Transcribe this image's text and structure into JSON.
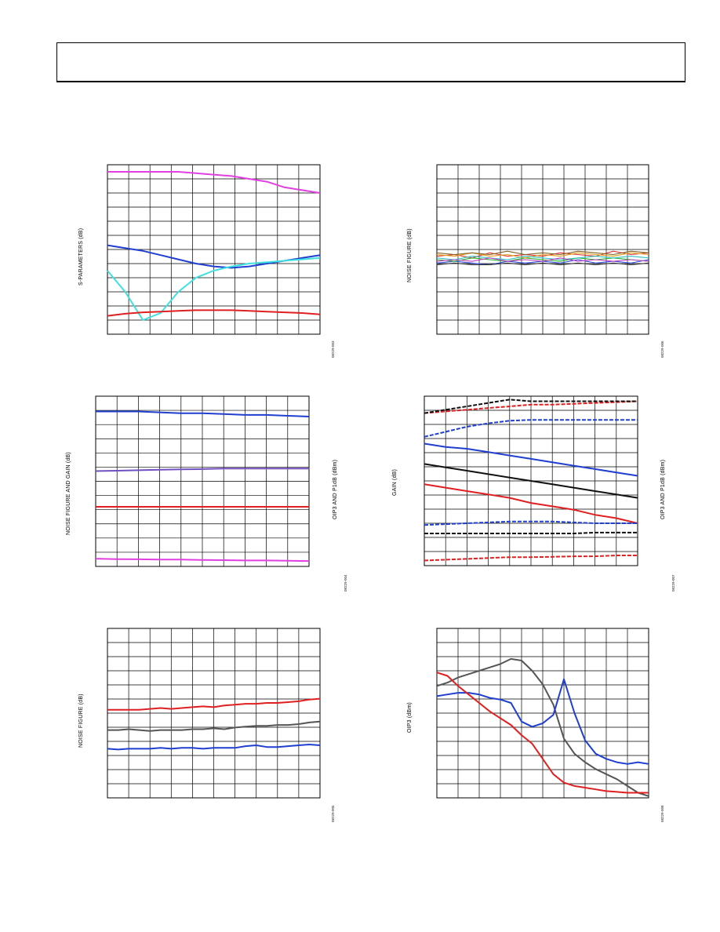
{
  "header": {
    "title": ""
  },
  "chart_data": [
    {
      "type": "line",
      "ylabel": "S-PARAMETERS (dB)",
      "figure_code": "08229-003",
      "grid": true,
      "x": [
        0,
        1,
        2,
        3,
        4,
        5,
        6,
        7,
        8,
        9,
        10,
        11,
        12
      ],
      "series": [
        {
          "color": "#e040e0",
          "values": [
            11.5,
            11.5,
            11.5,
            11.5,
            11.5,
            11.4,
            11.3,
            11.2,
            11.0,
            10.8,
            10.4,
            10.2,
            10.0
          ]
        },
        {
          "color": "#1f3fd0",
          "values": [
            6.3,
            6.1,
            5.9,
            5.6,
            5.3,
            5.0,
            4.8,
            4.7,
            4.8,
            5.0,
            5.2,
            5.4,
            5.6
          ]
        },
        {
          "color": "#40e0e0",
          "values": [
            4.5,
            3.0,
            1.0,
            1.5,
            3.0,
            4.0,
            4.5,
            4.8,
            5.0,
            5.1,
            5.2,
            5.3,
            5.4
          ]
        },
        {
          "color": "#e02020",
          "values": [
            1.3,
            1.45,
            1.55,
            1.6,
            1.65,
            1.7,
            1.7,
            1.7,
            1.65,
            1.6,
            1.55,
            1.5,
            1.4
          ]
        }
      ],
      "ylim": [
        0,
        12
      ]
    },
    {
      "type": "line",
      "ylabel": "NOISE FIGURE (dB)",
      "figure_code": "08229-006",
      "grid": true,
      "x": [
        0,
        1,
        2,
        3,
        4,
        5,
        6,
        7,
        8,
        9,
        10,
        11,
        12
      ],
      "series": [
        {
          "color": "#e03030",
          "values": [
            4.6,
            4.7,
            4.5,
            4.8,
            4.6,
            4.7,
            4.6,
            4.8,
            4.7,
            4.6,
            4.9,
            4.7,
            4.8
          ]
        },
        {
          "color": "#3050e0",
          "values": [
            4.2,
            4.3,
            4.2,
            4.1,
            4.3,
            4.2,
            4.3,
            4.2,
            4.4,
            4.2,
            4.3,
            4.2,
            4.4
          ]
        },
        {
          "color": "#30b030",
          "values": [
            4.4,
            4.3,
            4.5,
            4.4,
            4.3,
            4.5,
            4.4,
            4.3,
            4.5,
            4.4,
            4.5,
            4.4,
            4.3
          ]
        },
        {
          "color": "#e0a020",
          "values": [
            4.7,
            4.6,
            4.8,
            4.6,
            4.7,
            4.5,
            4.7,
            4.6,
            4.8,
            4.7,
            4.6,
            4.8,
            4.7
          ]
        },
        {
          "color": "#30c0c0",
          "values": [
            4.5,
            4.4,
            4.6,
            4.5,
            4.4,
            4.6,
            4.5,
            4.4,
            4.5,
            4.6,
            4.5,
            4.6,
            4.5
          ]
        },
        {
          "color": "#c040c0",
          "values": [
            4.3,
            4.4,
            4.3,
            4.5,
            4.3,
            4.4,
            4.3,
            4.5,
            4.3,
            4.4,
            4.3,
            4.4,
            4.3
          ]
        },
        {
          "color": "#303030",
          "values": [
            4.1,
            4.2,
            4.1,
            4.1,
            4.2,
            4.1,
            4.2,
            4.1,
            4.2,
            4.1,
            4.2,
            4.1,
            4.2
          ]
        },
        {
          "color": "#806020",
          "values": [
            4.8,
            4.7,
            4.8,
            4.7,
            4.9,
            4.7,
            4.8,
            4.7,
            4.9,
            4.8,
            4.7,
            4.9,
            4.8
          ]
        }
      ],
      "ylim": [
        0,
        10
      ]
    },
    {
      "type": "line",
      "ylabel": "NOISE FIGURE AND GAIN (dB)",
      "y2label": "OIP3 AND P1dB (dBm)",
      "figure_code": "08229-004",
      "grid": true,
      "x": [
        0,
        1,
        2,
        3,
        4,
        5,
        6,
        7,
        8,
        9,
        10
      ],
      "series": [
        {
          "color": "#1f3fd0",
          "values": [
            9.1,
            9.1,
            9.1,
            9.05,
            9.0,
            9.0,
            8.95,
            8.9,
            8.9,
            8.85,
            8.8
          ]
        },
        {
          "color": "#7050c0",
          "values": [
            5.6,
            5.62,
            5.65,
            5.68,
            5.7,
            5.72,
            5.75,
            5.75,
            5.75,
            5.75,
            5.75
          ]
        },
        {
          "color": "#e02020",
          "values": [
            3.5,
            3.5,
            3.5,
            3.5,
            3.5,
            3.5,
            3.5,
            3.5,
            3.5,
            3.5,
            3.5
          ]
        },
        {
          "color": "#e040e0",
          "values": [
            0.45,
            0.43,
            0.42,
            0.4,
            0.4,
            0.38,
            0.37,
            0.35,
            0.35,
            0.33,
            0.32
          ]
        }
      ],
      "ylim": [
        0,
        10
      ]
    },
    {
      "type": "line",
      "ylabel": "GAIN (dB)",
      "y2label": "OIP3 AND P1dB (dBm)",
      "figure_code": "08229-007",
      "grid": true,
      "x": [
        0,
        1,
        2,
        3,
        4,
        5,
        6,
        7,
        8,
        9,
        10
      ],
      "series": [
        {
          "color": "#e02020",
          "dash": true,
          "values": [
            9.0,
            9.1,
            9.2,
            9.3,
            9.4,
            9.5,
            9.5,
            9.55,
            9.6,
            9.65,
            9.7
          ]
        },
        {
          "color": "#111111",
          "dash": true,
          "values": [
            9.0,
            9.2,
            9.4,
            9.6,
            9.8,
            9.7,
            9.7,
            9.7,
            9.7,
            9.7,
            9.7
          ]
        },
        {
          "color": "#1f3fd0",
          "dash": true,
          "values": [
            7.6,
            7.9,
            8.2,
            8.4,
            8.55,
            8.6,
            8.6,
            8.6,
            8.6,
            8.6,
            8.6
          ]
        },
        {
          "color": "#1f3fd0",
          "values": [
            7.2,
            7.0,
            6.9,
            6.7,
            6.5,
            6.3,
            6.1,
            5.9,
            5.7,
            5.5,
            5.3
          ]
        },
        {
          "color": "#111111",
          "values": [
            6.0,
            5.8,
            5.6,
            5.4,
            5.2,
            5.0,
            4.8,
            4.6,
            4.4,
            4.2,
            4.0
          ]
        },
        {
          "color": "#e02020",
          "values": [
            4.8,
            4.6,
            4.4,
            4.2,
            4.0,
            3.7,
            3.5,
            3.3,
            3.0,
            2.8,
            2.5
          ]
        },
        {
          "color": "#1f3fd0",
          "dash": true,
          "values": [
            2.4,
            2.45,
            2.5,
            2.55,
            2.6,
            2.6,
            2.6,
            2.55,
            2.5,
            2.5,
            2.5
          ]
        },
        {
          "color": "#111111",
          "dash": true,
          "values": [
            1.9,
            1.9,
            1.9,
            1.9,
            1.9,
            1.9,
            1.9,
            1.9,
            1.95,
            1.95,
            1.95
          ]
        },
        {
          "color": "#e02020",
          "dash": true,
          "values": [
            0.3,
            0.35,
            0.4,
            0.45,
            0.5,
            0.5,
            0.52,
            0.55,
            0.55,
            0.6,
            0.6
          ]
        }
      ],
      "ylim": [
        0,
        10
      ]
    },
    {
      "type": "line",
      "ylabel": "NOISE FIGURE (dB)",
      "figure_code": "08229-005",
      "grid": true,
      "x": [
        0,
        1,
        2,
        3,
        4,
        5,
        6,
        7,
        8,
        9,
        10,
        11,
        12,
        13,
        14,
        15,
        16,
        17,
        18,
        19,
        20
      ],
      "series": [
        {
          "color": "#e02020",
          "values": [
            5.2,
            5.2,
            5.2,
            5.2,
            5.25,
            5.3,
            5.25,
            5.3,
            5.35,
            5.4,
            5.35,
            5.45,
            5.5,
            5.55,
            5.55,
            5.6,
            5.6,
            5.65,
            5.7,
            5.8,
            5.85
          ]
        },
        {
          "color": "#555555",
          "values": [
            4.0,
            4.0,
            4.05,
            4.0,
            3.95,
            4.0,
            4.0,
            4.0,
            4.05,
            4.05,
            4.1,
            4.05,
            4.15,
            4.2,
            4.25,
            4.25,
            4.3,
            4.3,
            4.35,
            4.45,
            4.5
          ]
        },
        {
          "color": "#1f3fd0",
          "values": [
            2.9,
            2.85,
            2.9,
            2.9,
            2.9,
            2.95,
            2.9,
            2.95,
            2.95,
            2.9,
            2.95,
            2.95,
            2.95,
            3.05,
            3.1,
            3.0,
            3.0,
            3.05,
            3.1,
            3.15,
            3.1
          ]
        }
      ],
      "ylim": [
        0,
        10
      ]
    },
    {
      "type": "line",
      "ylabel": "OIP3 (dBm)",
      "figure_code": "08229-008",
      "grid": true,
      "x": [
        0,
        1,
        2,
        3,
        4,
        5,
        6,
        7,
        8,
        9,
        10,
        11,
        12,
        13,
        14,
        15,
        16,
        17,
        18,
        19,
        20
      ],
      "series": [
        {
          "color": "#555555",
          "values": [
            6.6,
            6.8,
            7.1,
            7.3,
            7.5,
            7.7,
            7.9,
            8.2,
            8.1,
            7.5,
            6.7,
            5.5,
            3.5,
            2.6,
            2.1,
            1.7,
            1.4,
            1.1,
            0.7,
            0.3,
            0.1
          ]
        },
        {
          "color": "#1f3fd0",
          "values": [
            6.0,
            6.1,
            6.2,
            6.2,
            6.1,
            5.9,
            5.8,
            5.6,
            4.5,
            4.2,
            4.4,
            4.9,
            7.0,
            5.0,
            3.4,
            2.6,
            2.3,
            2.1,
            2.0,
            2.1,
            2.0
          ]
        },
        {
          "color": "#e02020",
          "values": [
            7.4,
            7.2,
            6.6,
            6.1,
            5.6,
            5.1,
            4.7,
            4.3,
            3.7,
            3.2,
            2.3,
            1.4,
            0.9,
            0.7,
            0.6,
            0.5,
            0.4,
            0.35,
            0.3,
            0.3,
            0.3
          ]
        }
      ],
      "ylim": [
        0,
        10
      ]
    }
  ]
}
